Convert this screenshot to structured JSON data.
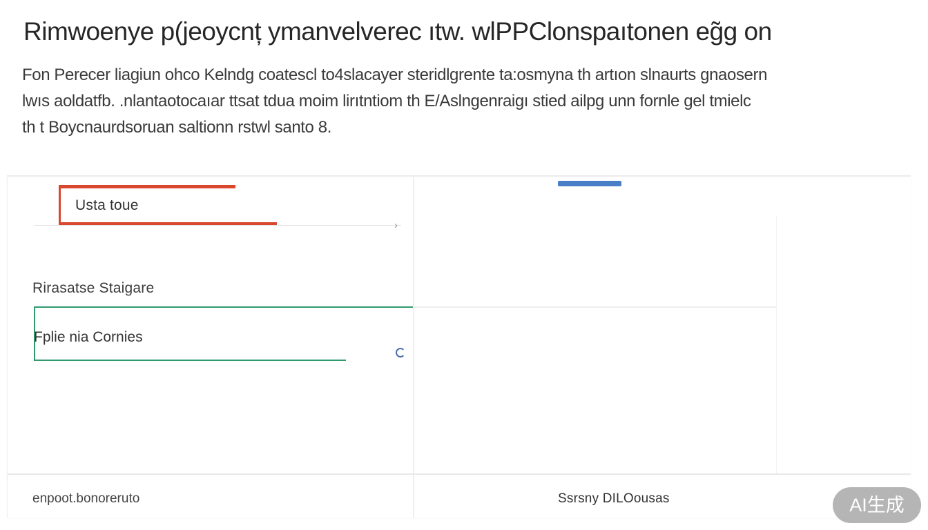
{
  "header": {
    "title": "Rimwoenye p(jeoycnț ymanvelverec ıtw. wlPPClonspaıtonen eg̃g on",
    "description_lines": [
      "Fon Perecer liagiun ohco Kelndg coatescl to4slacayer steridlgrente ta:osmyna th artıon slnaurts gnaosern",
      "lwıs aoldatfb. .nlantaotocaıar ttsat tdua moim lirıtntiom th E/Aslngenraigı stied ailpg unn fornle gel tmielc",
      "th t Boycnaurdsoruan saltionn rstwl santo 8."
    ]
  },
  "panel": {
    "usage_field": {
      "value": "Usta toue"
    },
    "section_label": "Rirasatse Staigare",
    "storage_field": {
      "value": "Fplie nia Cornies"
    },
    "footer": {
      "left": "enpoot.bonoreruto",
      "right": "Ssrsny DILOousas"
    }
  },
  "badge": {
    "label": "AI生成"
  },
  "colors": {
    "usage_accent": "#d9482e",
    "storage_accent": "#2e9b6d",
    "tab_accent": "#4a7fc8"
  },
  "icons": {
    "usage_end": "chevron-right-icon",
    "storage_spinner": "spinner-icon"
  }
}
